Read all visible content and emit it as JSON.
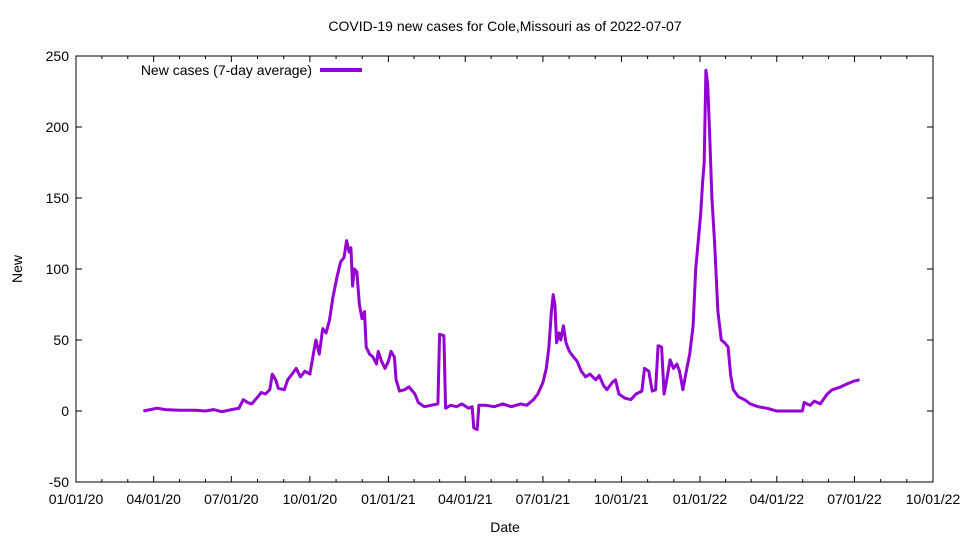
{
  "chart_data": {
    "type": "line",
    "title": "COVID-19 new cases for Cole,Missouri as of 2022-07-07",
    "xlabel": "Date",
    "ylabel": "New",
    "ylim": [
      -50,
      250
    ],
    "xlim": [
      "2020-01-01",
      "2022-10-01"
    ],
    "y_ticks": [
      -50,
      0,
      50,
      100,
      150,
      200,
      250
    ],
    "x_ticks": [
      {
        "date": "2020-01-01",
        "label": "01/01/20"
      },
      {
        "date": "2020-04-01",
        "label": "04/01/20"
      },
      {
        "date": "2020-07-01",
        "label": "07/01/20"
      },
      {
        "date": "2020-10-01",
        "label": "10/01/20"
      },
      {
        "date": "2021-01-01",
        "label": "01/01/21"
      },
      {
        "date": "2021-04-01",
        "label": "04/01/21"
      },
      {
        "date": "2021-07-01",
        "label": "07/01/21"
      },
      {
        "date": "2021-10-01",
        "label": "10/01/21"
      },
      {
        "date": "2022-01-01",
        "label": "01/01/22"
      },
      {
        "date": "2022-04-01",
        "label": "04/01/22"
      },
      {
        "date": "2022-07-01",
        "label": "07/01/22"
      },
      {
        "date": "2022-10-01",
        "label": "10/01/22"
      }
    ],
    "legend": "top-left",
    "grid": false,
    "series": [
      {
        "name": "New cases (7-day average)",
        "color": "#9400d3",
        "points": [
          [
            "2020-03-20",
            0
          ],
          [
            "2020-03-28",
            1
          ],
          [
            "2020-04-05",
            2
          ],
          [
            "2020-04-15",
            1
          ],
          [
            "2020-05-01",
            0.5
          ],
          [
            "2020-05-20",
            0.5
          ],
          [
            "2020-06-01",
            0
          ],
          [
            "2020-06-10",
            1
          ],
          [
            "2020-06-20",
            -0.5
          ],
          [
            "2020-07-01",
            1
          ],
          [
            "2020-07-10",
            2
          ],
          [
            "2020-07-15",
            8
          ],
          [
            "2020-07-20",
            6
          ],
          [
            "2020-07-25",
            5
          ],
          [
            "2020-08-01",
            10
          ],
          [
            "2020-08-05",
            13
          ],
          [
            "2020-08-10",
            12
          ],
          [
            "2020-08-15",
            15
          ],
          [
            "2020-08-18",
            26
          ],
          [
            "2020-08-22",
            22
          ],
          [
            "2020-08-25",
            16
          ],
          [
            "2020-09-01",
            15
          ],
          [
            "2020-09-05",
            22
          ],
          [
            "2020-09-10",
            26
          ],
          [
            "2020-09-15",
            30
          ],
          [
            "2020-09-20",
            24
          ],
          [
            "2020-09-25",
            28
          ],
          [
            "2020-10-01",
            26
          ],
          [
            "2020-10-05",
            40
          ],
          [
            "2020-10-08",
            50
          ],
          [
            "2020-10-12",
            40
          ],
          [
            "2020-10-16",
            58
          ],
          [
            "2020-10-20",
            55
          ],
          [
            "2020-10-24",
            64
          ],
          [
            "2020-10-28",
            80
          ],
          [
            "2020-11-02",
            95
          ],
          [
            "2020-11-06",
            105
          ],
          [
            "2020-11-10",
            108
          ],
          [
            "2020-11-13",
            120
          ],
          [
            "2020-11-16",
            112
          ],
          [
            "2020-11-18",
            115
          ],
          [
            "2020-11-20",
            88
          ],
          [
            "2020-11-22",
            100
          ],
          [
            "2020-11-25",
            98
          ],
          [
            "2020-11-28",
            75
          ],
          [
            "2020-12-01",
            65
          ],
          [
            "2020-12-04",
            70
          ],
          [
            "2020-12-06",
            45
          ],
          [
            "2020-12-10",
            40
          ],
          [
            "2020-12-14",
            38
          ],
          [
            "2020-12-18",
            33
          ],
          [
            "2020-12-20",
            42
          ],
          [
            "2020-12-24",
            35
          ],
          [
            "2020-12-28",
            30
          ],
          [
            "2021-01-01",
            35
          ],
          [
            "2021-01-04",
            42
          ],
          [
            "2021-01-08",
            38
          ],
          [
            "2021-01-10",
            22
          ],
          [
            "2021-01-14",
            14
          ],
          [
            "2021-01-20",
            15
          ],
          [
            "2021-01-25",
            17
          ],
          [
            "2021-02-01",
            12
          ],
          [
            "2021-02-05",
            6
          ],
          [
            "2021-02-12",
            3
          ],
          [
            "2021-02-20",
            4
          ],
          [
            "2021-02-28",
            5
          ],
          [
            "2021-03-02",
            54
          ],
          [
            "2021-03-07",
            53
          ],
          [
            "2021-03-09",
            2
          ],
          [
            "2021-03-15",
            4
          ],
          [
            "2021-03-22",
            3
          ],
          [
            "2021-03-28",
            5
          ],
          [
            "2021-04-05",
            2
          ],
          [
            "2021-04-09",
            3
          ],
          [
            "2021-04-11",
            -12
          ],
          [
            "2021-04-15",
            -13
          ],
          [
            "2021-04-17",
            4
          ],
          [
            "2021-04-25",
            4
          ],
          [
            "2021-05-05",
            3
          ],
          [
            "2021-05-15",
            5
          ],
          [
            "2021-05-25",
            3
          ],
          [
            "2021-06-05",
            5
          ],
          [
            "2021-06-12",
            4
          ],
          [
            "2021-06-20",
            8
          ],
          [
            "2021-06-25",
            12
          ],
          [
            "2021-07-01",
            20
          ],
          [
            "2021-07-05",
            30
          ],
          [
            "2021-07-08",
            45
          ],
          [
            "2021-07-11",
            70
          ],
          [
            "2021-07-13",
            82
          ],
          [
            "2021-07-15",
            75
          ],
          [
            "2021-07-17",
            48
          ],
          [
            "2021-07-20",
            55
          ],
          [
            "2021-07-22",
            50
          ],
          [
            "2021-07-25",
            60
          ],
          [
            "2021-07-28",
            48
          ],
          [
            "2021-08-01",
            42
          ],
          [
            "2021-08-06",
            38
          ],
          [
            "2021-08-10",
            35
          ],
          [
            "2021-08-15",
            28
          ],
          [
            "2021-08-20",
            24
          ],
          [
            "2021-08-25",
            26
          ],
          [
            "2021-09-01",
            22
          ],
          [
            "2021-09-05",
            25
          ],
          [
            "2021-09-10",
            18
          ],
          [
            "2021-09-14",
            15
          ],
          [
            "2021-09-20",
            20
          ],
          [
            "2021-09-24",
            22
          ],
          [
            "2021-09-28",
            12
          ],
          [
            "2021-10-05",
            9
          ],
          [
            "2021-10-12",
            8
          ],
          [
            "2021-10-18",
            12
          ],
          [
            "2021-10-25",
            14
          ],
          [
            "2021-10-28",
            30
          ],
          [
            "2021-11-02",
            28
          ],
          [
            "2021-11-06",
            14
          ],
          [
            "2021-11-10",
            15
          ],
          [
            "2021-11-13",
            46
          ],
          [
            "2021-11-17",
            45
          ],
          [
            "2021-11-20",
            12
          ],
          [
            "2021-11-24",
            25
          ],
          [
            "2021-11-27",
            36
          ],
          [
            "2021-12-01",
            30
          ],
          [
            "2021-12-05",
            33
          ],
          [
            "2021-12-08",
            28
          ],
          [
            "2021-12-12",
            15
          ],
          [
            "2021-12-16",
            28
          ],
          [
            "2021-12-20",
            40
          ],
          [
            "2021-12-24",
            60
          ],
          [
            "2021-12-27",
            100
          ],
          [
            "2021-12-30",
            120
          ],
          [
            "2022-01-02",
            140
          ],
          [
            "2022-01-04",
            160
          ],
          [
            "2022-01-06",
            175
          ],
          [
            "2022-01-08",
            240
          ],
          [
            "2022-01-10",
            230
          ],
          [
            "2022-01-12",
            200
          ],
          [
            "2022-01-15",
            150
          ],
          [
            "2022-01-18",
            120
          ],
          [
            "2022-01-22",
            70
          ],
          [
            "2022-01-26",
            50
          ],
          [
            "2022-01-30",
            48
          ],
          [
            "2022-02-03",
            45
          ],
          [
            "2022-02-06",
            25
          ],
          [
            "2022-02-09",
            15
          ],
          [
            "2022-02-15",
            10
          ],
          [
            "2022-02-22",
            8
          ],
          [
            "2022-03-01",
            5
          ],
          [
            "2022-03-10",
            3
          ],
          [
            "2022-03-20",
            2
          ],
          [
            "2022-04-01",
            0
          ],
          [
            "2022-04-20",
            0
          ],
          [
            "2022-05-01",
            0
          ],
          [
            "2022-05-03",
            6
          ],
          [
            "2022-05-10",
            4
          ],
          [
            "2022-05-15",
            7
          ],
          [
            "2022-05-22",
            5
          ],
          [
            "2022-05-30",
            12
          ],
          [
            "2022-06-05",
            15
          ],
          [
            "2022-06-15",
            17
          ],
          [
            "2022-06-22",
            19
          ],
          [
            "2022-06-30",
            21
          ],
          [
            "2022-07-07",
            22
          ]
        ]
      }
    ]
  }
}
